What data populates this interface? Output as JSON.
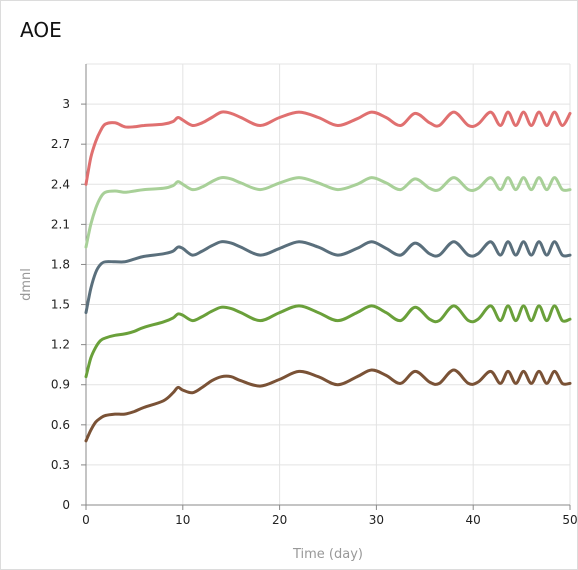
{
  "chart_data": {
    "type": "line",
    "title": "AOE",
    "xlabel": "Time (day)",
    "ylabel": "dmnl",
    "xlim": [
      0,
      50
    ],
    "ylim": [
      0,
      3.3
    ],
    "xticks": [
      "0",
      "10",
      "20",
      "30",
      "40",
      "50"
    ],
    "yticks": [
      "0",
      "0.3",
      "0.6",
      "0.9",
      "1.2",
      "1.5",
      "1.8",
      "2.1",
      "2.4",
      "2.7",
      "3"
    ],
    "grid": true,
    "legend": "none",
    "colors": [
      "#e07070",
      "#a8d098",
      "#5a6f7c",
      "#6aa03a",
      "#7a5236"
    ],
    "series": [
      {
        "color": "#e07070",
        "x": [
          0,
          0.5,
          1,
          1.5,
          2,
          3,
          4,
          5,
          6,
          8,
          9,
          9.5,
          10,
          11,
          12,
          13,
          14,
          15,
          16,
          18,
          20,
          22,
          24,
          26,
          28,
          29.5,
          31,
          32.5,
          34,
          35.5,
          36.5,
          38,
          39.5,
          40.5,
          41.8,
          42.8,
          43.6,
          44.4,
          45.2,
          46,
          46.8,
          47.6,
          48.4,
          49.2,
          50
        ],
        "y": [
          2.4,
          2.6,
          2.72,
          2.8,
          2.85,
          2.86,
          2.83,
          2.83,
          2.84,
          2.85,
          2.87,
          2.9,
          2.88,
          2.84,
          2.86,
          2.9,
          2.94,
          2.93,
          2.9,
          2.84,
          2.9,
          2.94,
          2.9,
          2.84,
          2.89,
          2.94,
          2.9,
          2.84,
          2.93,
          2.86,
          2.84,
          2.94,
          2.84,
          2.85,
          2.94,
          2.84,
          2.94,
          2.84,
          2.94,
          2.84,
          2.94,
          2.84,
          2.94,
          2.84,
          2.93
        ]
      },
      {
        "color": "#a8d098",
        "x": [
          0,
          0.5,
          1,
          1.5,
          2,
          3,
          4,
          5,
          6,
          8,
          9,
          9.5,
          10,
          11,
          12,
          13,
          14,
          15,
          16,
          18,
          20,
          22,
          24,
          26,
          28,
          29.5,
          31,
          32.5,
          34,
          35.5,
          36.5,
          38,
          39.5,
          40.5,
          41.8,
          42.8,
          43.6,
          44.4,
          45.2,
          46,
          46.8,
          47.6,
          48.4,
          49.2,
          50
        ],
        "y": [
          1.93,
          2.1,
          2.22,
          2.3,
          2.34,
          2.35,
          2.34,
          2.35,
          2.36,
          2.37,
          2.39,
          2.42,
          2.4,
          2.36,
          2.38,
          2.42,
          2.45,
          2.44,
          2.41,
          2.36,
          2.41,
          2.45,
          2.41,
          2.36,
          2.4,
          2.45,
          2.41,
          2.36,
          2.44,
          2.37,
          2.36,
          2.45,
          2.36,
          2.37,
          2.45,
          2.36,
          2.45,
          2.36,
          2.45,
          2.36,
          2.45,
          2.36,
          2.45,
          2.36,
          2.36
        ]
      },
      {
        "color": "#5a6f7c",
        "x": [
          0,
          0.5,
          1,
          1.5,
          2,
          3,
          4,
          5,
          6,
          8,
          9,
          9.5,
          10,
          11,
          12,
          13,
          14,
          15,
          16,
          18,
          20,
          22,
          24,
          26,
          28,
          29.5,
          31,
          32.5,
          34,
          35.5,
          36.5,
          38,
          39.5,
          40.5,
          41.8,
          42.8,
          43.6,
          44.4,
          45.2,
          46,
          46.8,
          47.6,
          48.4,
          49.2,
          50
        ],
        "y": [
          1.44,
          1.62,
          1.74,
          1.8,
          1.82,
          1.82,
          1.82,
          1.84,
          1.86,
          1.88,
          1.9,
          1.93,
          1.92,
          1.87,
          1.9,
          1.94,
          1.97,
          1.96,
          1.93,
          1.87,
          1.92,
          1.97,
          1.93,
          1.87,
          1.92,
          1.97,
          1.92,
          1.87,
          1.96,
          1.88,
          1.87,
          1.97,
          1.87,
          1.88,
          1.97,
          1.87,
          1.97,
          1.87,
          1.97,
          1.87,
          1.97,
          1.87,
          1.97,
          1.87,
          1.87
        ]
      },
      {
        "color": "#6aa03a",
        "x": [
          0,
          0.5,
          1,
          1.5,
          2,
          3,
          4,
          5,
          6,
          8,
          9,
          9.5,
          10,
          11,
          12,
          13,
          14,
          15,
          16,
          18,
          20,
          22,
          24,
          26,
          28,
          29.5,
          31,
          32.5,
          34,
          35.5,
          36.5,
          38,
          39.5,
          40.5,
          41.8,
          42.8,
          43.6,
          44.4,
          45.2,
          46,
          46.8,
          47.6,
          48.4,
          49.2,
          50
        ],
        "y": [
          0.96,
          1.1,
          1.18,
          1.23,
          1.25,
          1.27,
          1.28,
          1.3,
          1.33,
          1.37,
          1.4,
          1.43,
          1.42,
          1.38,
          1.41,
          1.45,
          1.48,
          1.47,
          1.44,
          1.38,
          1.44,
          1.49,
          1.44,
          1.38,
          1.44,
          1.49,
          1.44,
          1.38,
          1.48,
          1.39,
          1.38,
          1.49,
          1.38,
          1.39,
          1.49,
          1.38,
          1.49,
          1.38,
          1.49,
          1.38,
          1.49,
          1.38,
          1.49,
          1.38,
          1.39
        ]
      },
      {
        "color": "#7a5236",
        "x": [
          0,
          0.5,
          1,
          1.5,
          2,
          3,
          4,
          5,
          6,
          8,
          9,
          9.5,
          10,
          11,
          12,
          13,
          14,
          15,
          16,
          18,
          20,
          22,
          24,
          26,
          28,
          29.5,
          31,
          32.5,
          34,
          35.5,
          36.5,
          38,
          39.5,
          40.5,
          41.8,
          42.8,
          43.6,
          44.4,
          45.2,
          46,
          46.8,
          47.6,
          48.4,
          49.2,
          50
        ],
        "y": [
          0.48,
          0.56,
          0.62,
          0.65,
          0.67,
          0.68,
          0.68,
          0.7,
          0.73,
          0.78,
          0.84,
          0.88,
          0.86,
          0.84,
          0.88,
          0.93,
          0.96,
          0.96,
          0.93,
          0.89,
          0.94,
          1.0,
          0.96,
          0.9,
          0.96,
          1.01,
          0.97,
          0.91,
          1.0,
          0.92,
          0.91,
          1.01,
          0.91,
          0.92,
          1.0,
          0.91,
          1.0,
          0.91,
          1.0,
          0.91,
          1.0,
          0.91,
          1.0,
          0.91,
          0.91
        ]
      }
    ]
  }
}
